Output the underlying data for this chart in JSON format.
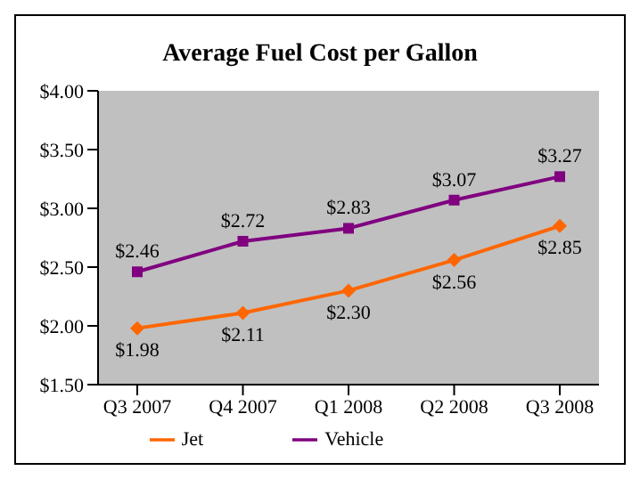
{
  "chart_data": {
    "type": "line",
    "title": "Average Fuel Cost per Gallon",
    "categories": [
      "Q3 2007",
      "Q4 2007",
      "Q1 2008",
      "Q2 2008",
      "Q3 2008"
    ],
    "series": [
      {
        "name": "Jet",
        "color": "#ff6600",
        "marker": "diamond",
        "values": [
          1.98,
          2.11,
          2.3,
          2.56,
          2.85
        ],
        "value_labels": [
          "$1.98",
          "$2.11",
          "$2.30",
          "$2.56",
          "$2.85"
        ]
      },
      {
        "name": "Vehicle",
        "color": "#800080",
        "marker": "square",
        "values": [
          2.46,
          2.72,
          2.83,
          3.07,
          3.27
        ],
        "value_labels": [
          "$2.46",
          "$2.72",
          "$2.83",
          "$3.07",
          "$3.27"
        ]
      }
    ],
    "ylim": [
      1.5,
      4.0
    ],
    "yticks": [
      {
        "value": 1.5,
        "label": "$1.50"
      },
      {
        "value": 2.0,
        "label": "$2.00"
      },
      {
        "value": 2.5,
        "label": "$2.50"
      },
      {
        "value": 3.0,
        "label": "$3.00"
      },
      {
        "value": 3.5,
        "label": "$3.50"
      },
      {
        "value": 4.0,
        "label": "$4.00"
      }
    ],
    "grid": false,
    "legend": "bottom"
  }
}
